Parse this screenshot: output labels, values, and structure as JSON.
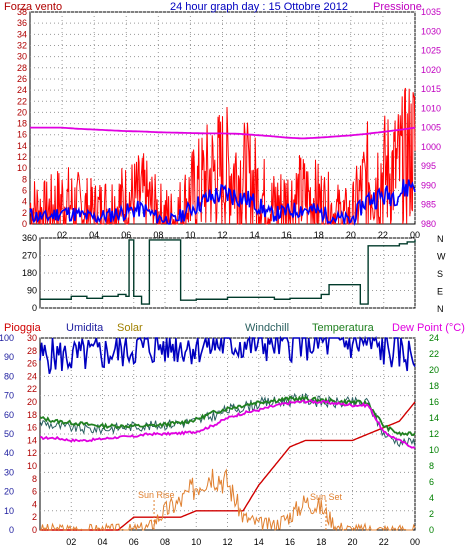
{
  "title": "24 hour graph day : 15 Ottobre 2012",
  "colors": {
    "wind": "#ff0000",
    "wind_avg": "#0000ff",
    "pressure": "#e000e0",
    "direction": "#003a2a",
    "rain": "#d00000",
    "humidity": "#0000c0",
    "solar": "#e08030",
    "windchill": "#2a6060",
    "temperature": "#208020",
    "dew_point": "#e000e0",
    "axis_left_top": "#b00000",
    "axis_right_top": "#c000c0",
    "axis_left_bottom": "#2020a0",
    "axis_right_bottom": "#008000"
  },
  "panel_wind": {
    "label_left": "Forza vento",
    "label_right": "Pressione",
    "y_left_ticks": [
      "0",
      "2",
      "4",
      "6",
      "8",
      "10",
      "12",
      "14",
      "16",
      "18",
      "20",
      "22",
      "24",
      "26",
      "28",
      "30",
      "32",
      "34",
      "36",
      "38"
    ],
    "y_right_ticks": [
      "980",
      "985",
      "990",
      "995",
      "1000",
      "1005",
      "1010",
      "1015",
      "1020",
      "1025",
      "1030",
      "1035"
    ]
  },
  "panel_dir": {
    "y_left_ticks": [
      "0",
      "90",
      "180",
      "270",
      "360"
    ],
    "compass": [
      "N",
      "W",
      "S",
      "E",
      "N"
    ]
  },
  "panel_bottom": {
    "labels": {
      "rain": "Pioggia",
      "humidity": "Umidita",
      "solar": "Solar",
      "windchill": "Windchill",
      "temperature": "Temperatura",
      "dew_point": "Dew Point (°C)"
    },
    "y_hum_ticks": [
      "0",
      "10",
      "20",
      "30",
      "40",
      "50",
      "60",
      "70",
      "80",
      "90",
      "100"
    ],
    "y_rain_ticks": [
      "0",
      "2",
      "4",
      "6",
      "8",
      "10",
      "12",
      "14",
      "16",
      "18",
      "20",
      "22",
      "24",
      "26",
      "28",
      "30"
    ],
    "y_temp_ticks": [
      "0",
      "2",
      "4",
      "6",
      "8",
      "10",
      "12",
      "14",
      "16",
      "18",
      "20",
      "22",
      "24"
    ],
    "sun_rise": "Sun Rise",
    "sun_set": "Sun Set"
  },
  "x_ticks": [
    "02",
    "04",
    "06",
    "08",
    "10",
    "12",
    "14",
    "16",
    "18",
    "20",
    "22",
    "00"
  ],
  "chart_data": [
    {
      "type": "line",
      "x_unit": "hour",
      "x": [
        0,
        1,
        2,
        3,
        4,
        5,
        6,
        7,
        8,
        9,
        10,
        11,
        12,
        13,
        14,
        15,
        16,
        17,
        18,
        19,
        20,
        21,
        22,
        23,
        24
      ],
      "series": [
        {
          "name": "Forza vento",
          "values": [
            3,
            2,
            4,
            3,
            2,
            3,
            4,
            5,
            2,
            1,
            5,
            8,
            10,
            9,
            7,
            3,
            4,
            5,
            4,
            2,
            1,
            8,
            9,
            10,
            14
          ]
        },
        {
          "name": "Pressione",
          "values": [
            1005,
            1005,
            1005,
            1004.7,
            1004.5,
            1004.3,
            1004.1,
            1004,
            1003.8,
            1003.7,
            1003.6,
            1003.5,
            1003.5,
            1003.4,
            1003.1,
            1002.8,
            1002.4,
            1002.2,
            1002.4,
            1002.7,
            1003,
            1003.4,
            1003.9,
            1004.4,
            1005
          ]
        }
      ],
      "ylim_left": [
        0,
        38
      ],
      "ylim_right": [
        980,
        1035
      ]
    },
    {
      "type": "line",
      "x_unit": "hour",
      "x": [
        0,
        1,
        2,
        3,
        4,
        5,
        5.5,
        5.7,
        6,
        6.5,
        7,
        7.3,
        8,
        9,
        10,
        12,
        14,
        15,
        16,
        18,
        18.5,
        20,
        20.5,
        21,
        23,
        23.5,
        24
      ],
      "series": [
        {
          "name": "Direzione vento",
          "values": [
            45,
            45,
            60,
            50,
            60,
            70,
            60,
            350,
            60,
            20,
            350,
            350,
            350,
            40,
            45,
            55,
            55,
            45,
            50,
            70,
            120,
            120,
            20,
            320,
            330,
            340,
            350
          ]
        }
      ],
      "ylim": [
        0,
        360
      ]
    },
    {
      "type": "line",
      "x_unit": "hour",
      "x": [
        0,
        1,
        2,
        3,
        4,
        5,
        6,
        7,
        8,
        9,
        10,
        11,
        12,
        13,
        14,
        15,
        16,
        17,
        18,
        19,
        20,
        21,
        22,
        23,
        24
      ],
      "series": [
        {
          "name": "Pioggia",
          "values": [
            0,
            0,
            0,
            0,
            0,
            0,
            2,
            2,
            2,
            2,
            3,
            3,
            3,
            3,
            7,
            10,
            13,
            14,
            14,
            14,
            14,
            15,
            16,
            17,
            20
          ]
        },
        {
          "name": "Umidita",
          "values": [
            90,
            91,
            90,
            91,
            92,
            93,
            95,
            95,
            96,
            96,
            96,
            97,
            97,
            97,
            97,
            98,
            98,
            98,
            98,
            98,
            98,
            97,
            94,
            93,
            90
          ]
        },
        {
          "name": "Solar",
          "values": [
            0,
            0,
            0,
            0,
            0,
            0,
            0,
            10,
            60,
            90,
            140,
            180,
            150,
            40,
            20,
            15,
            45,
            90,
            70,
            10,
            0,
            0,
            0,
            0,
            0
          ]
        },
        {
          "name": "Windchill",
          "values": [
            13.5,
            13,
            12.8,
            12.6,
            12.6,
            12.8,
            13,
            13,
            13.2,
            13.4,
            13.6,
            14.2,
            15,
            15.4,
            15.8,
            16,
            16.2,
            16.4,
            16,
            15.9,
            15.9,
            15.9,
            12,
            11,
            11
          ]
        },
        {
          "name": "Temperatura",
          "values": [
            14,
            13.6,
            13.4,
            13.2,
            13,
            13,
            13,
            13,
            13.2,
            13.4,
            13.8,
            14.6,
            15.2,
            15.6,
            16,
            16.2,
            16.4,
            16.4,
            16.2,
            16,
            16,
            15.8,
            13,
            12,
            12
          ]
        },
        {
          "name": "Dew Point (°C)",
          "values": [
            11.5,
            11.5,
            11.2,
            11.2,
            11.4,
            11.6,
            11.7,
            12,
            12,
            12.1,
            12.3,
            13,
            14,
            14.6,
            15,
            15.5,
            15.9,
            16.1,
            16,
            15.8,
            15.6,
            15.6,
            12.2,
            11.2,
            10.2
          ]
        }
      ],
      "ylim_humidity": [
        0,
        100
      ],
      "ylim_rain": [
        0,
        30
      ],
      "ylim_temp": [
        0,
        24
      ]
    }
  ]
}
